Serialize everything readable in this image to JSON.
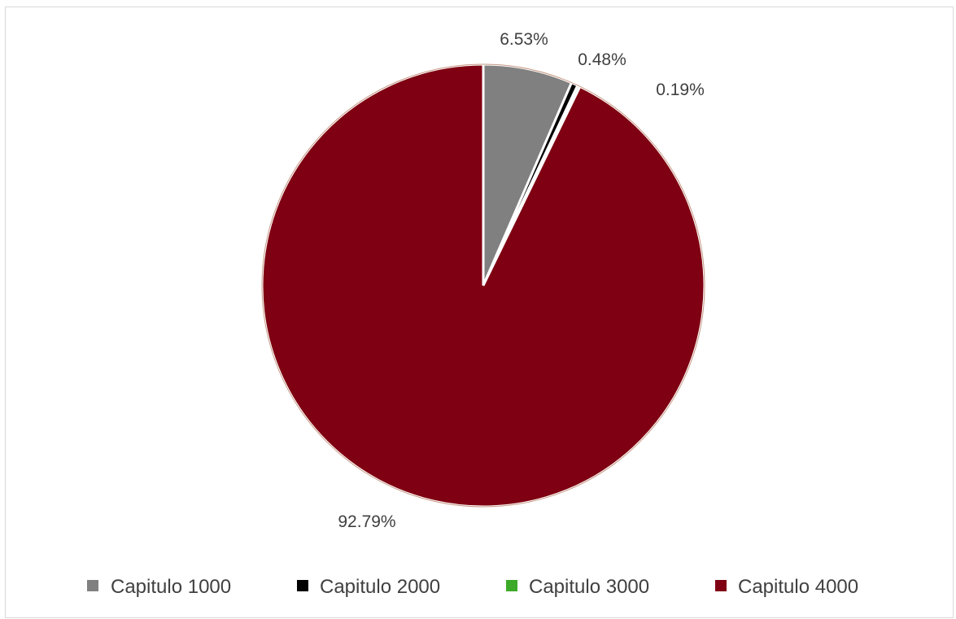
{
  "chart_data": {
    "type": "pie",
    "title": "",
    "categories": [
      "Capitulo 1000",
      "Capitulo 2000",
      "Capitulo 3000",
      "Capitulo 4000"
    ],
    "values": [
      6.53,
      0.48,
      0.19,
      92.79
    ],
    "data_labels": [
      "6.53%",
      "0.48%",
      "0.19%",
      "92.79%"
    ],
    "colors": [
      "#808080",
      "#000000",
      "#3CAA28",
      "#7F0012"
    ],
    "legend": {
      "position": "bottom",
      "entries": [
        "Capitulo 1000",
        "Capitulo 2000",
        "Capitulo 3000",
        "Capitulo 4000"
      ]
    }
  }
}
